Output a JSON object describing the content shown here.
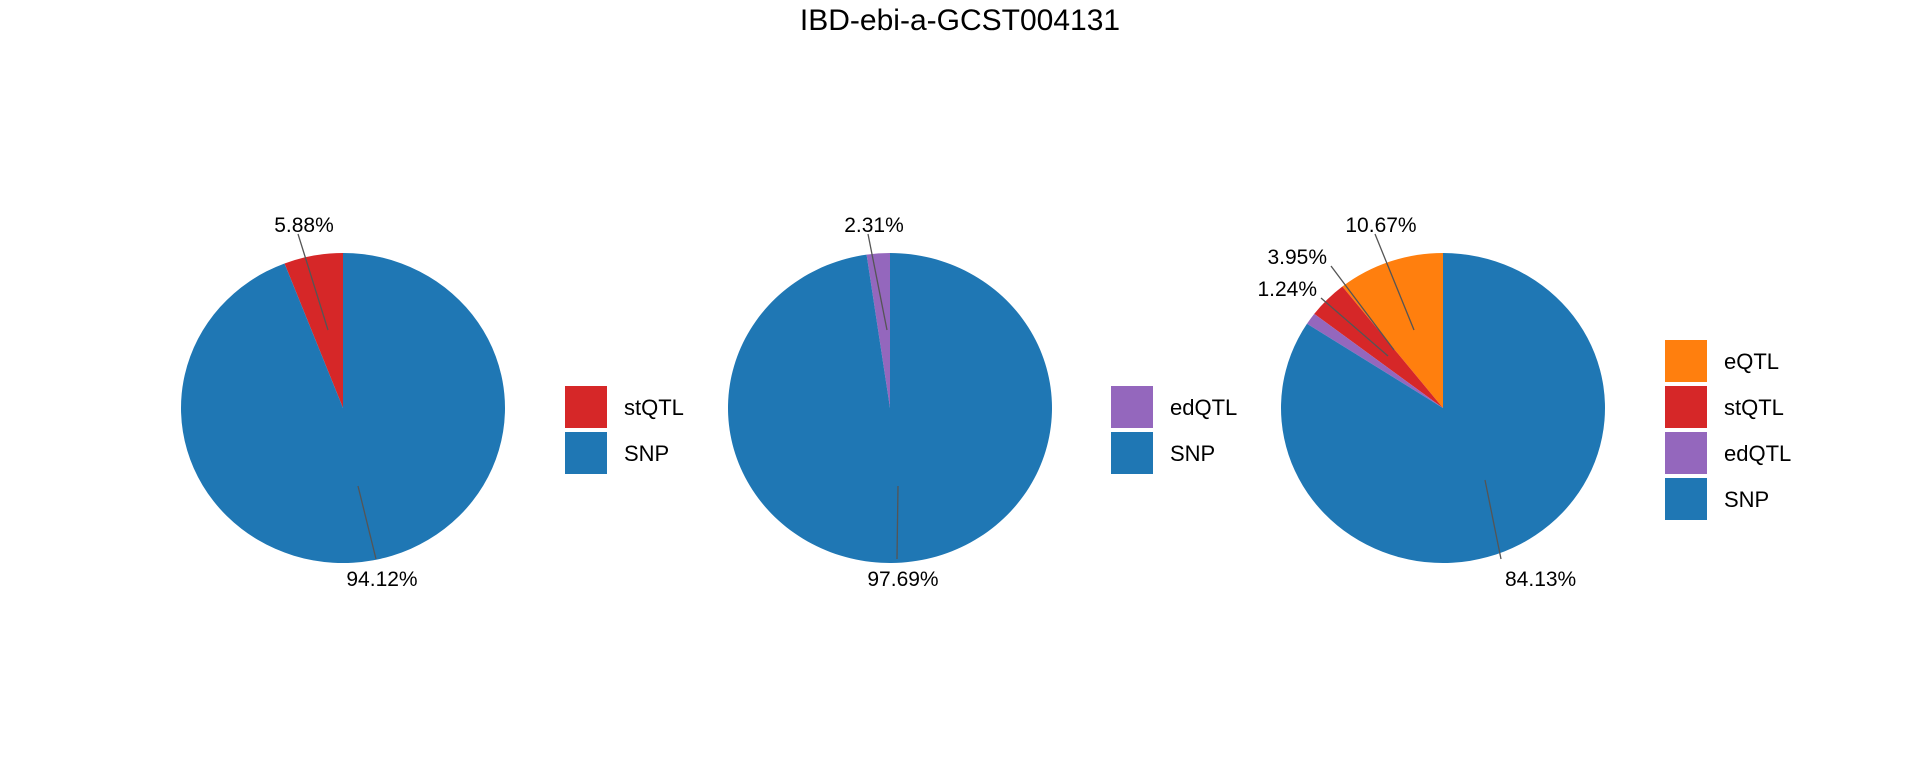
{
  "title": "IBD-ebi-a-GCST004131",
  "chart_data": [
    {
      "type": "pie",
      "slices": [
        {
          "label": "stQTL",
          "value": 5.88,
          "value_text": "5.88%",
          "color": "#d62728"
        },
        {
          "label": "SNP",
          "value": 94.12,
          "value_text": "94.12%",
          "color": "#1f77b4"
        }
      ],
      "legend": [
        "stQTL",
        "SNP"
      ]
    },
    {
      "type": "pie",
      "slices": [
        {
          "label": "edQTL",
          "value": 2.31,
          "value_text": "2.31%",
          "color": "#9467bd"
        },
        {
          "label": "SNP",
          "value": 97.69,
          "value_text": "97.69%",
          "color": "#1f77b4"
        }
      ],
      "legend": [
        "edQTL",
        "SNP"
      ]
    },
    {
      "type": "pie",
      "slices": [
        {
          "label": "eQTL",
          "value": 10.67,
          "value_text": "10.67%",
          "color": "#ff7f0e"
        },
        {
          "label": "stQTL",
          "value": 3.95,
          "value_text": "3.95%",
          "color": "#d62728"
        },
        {
          "label": "edQTL",
          "value": 1.24,
          "value_text": "1.24%",
          "color": "#9467bd"
        },
        {
          "label": "SNP",
          "value": 84.13,
          "value_text": "84.13%",
          "color": "#1f77b4"
        }
      ],
      "legend": [
        "eQTL",
        "stQTL",
        "edQTL",
        "SNP"
      ]
    }
  ]
}
